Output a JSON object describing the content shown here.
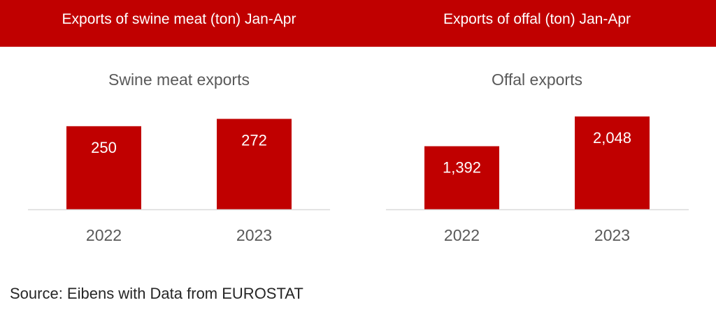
{
  "header": {
    "left_title": "Exports of swine meat (ton) Jan-Apr",
    "right_title": "Exports of offal (ton) Jan-Apr"
  },
  "colors": {
    "header_bg": "#c00000",
    "bar": "#c00000",
    "axis_line": "#d9d9d9",
    "chart_title": "#595959",
    "tick": "#595959",
    "data_label": "#ffffff"
  },
  "chart_data": [
    {
      "type": "bar",
      "title": "Swine meat exports",
      "categories": [
        "2022",
        "2023"
      ],
      "values": [
        250,
        272
      ],
      "value_labels": [
        "250",
        "272"
      ],
      "ylim": [
        0,
        300
      ],
      "grid": false,
      "legend": "none"
    },
    {
      "type": "bar",
      "title": "Offal exports",
      "categories": [
        "2022",
        "2023"
      ],
      "values": [
        1392,
        2048
      ],
      "value_labels": [
        "1,392",
        "2,048"
      ],
      "ylim": [
        0,
        2200
      ],
      "grid": false,
      "legend": "none"
    }
  ],
  "source": "Source: Eibens with Data from EUROSTAT"
}
